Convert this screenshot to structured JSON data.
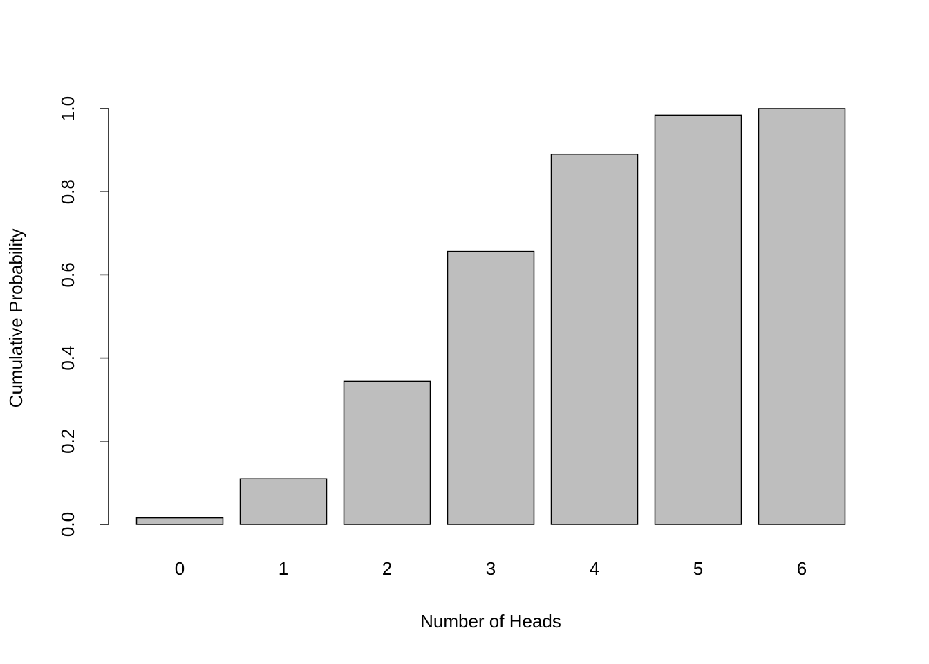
{
  "chart_data": {
    "type": "bar",
    "x_label": "Number of Heads",
    "y_label": "Cumulative Probability",
    "categories": [
      "0",
      "1",
      "2",
      "3",
      "4",
      "5",
      "6"
    ],
    "values": [
      0.015625,
      0.109375,
      0.34375,
      0.65625,
      0.890625,
      0.984375,
      1.0
    ],
    "color": "#bebebe",
    "ylim": [
      0,
      1
    ],
    "yticks": [
      {
        "value": 0,
        "label": "0.0"
      },
      {
        "value": 0.2,
        "label": "0.2"
      },
      {
        "value": 0.4,
        "label": "0.4"
      },
      {
        "value": 0.6,
        "label": "0.6"
      },
      {
        "value": 0.8,
        "label": "0.8"
      },
      {
        "value": 1,
        "label": "1.0"
      }
    ],
    "grid": false
  }
}
